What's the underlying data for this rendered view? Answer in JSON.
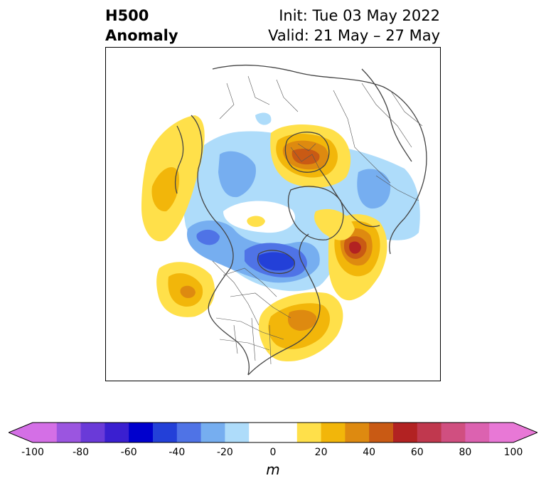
{
  "title": {
    "left_line1": "H500",
    "left_line2": "Anomaly",
    "right_line1": "Init: Tue 03 May 2022",
    "right_line2": "Valid: 21 May – 27 May"
  },
  "colorbar": {
    "label": "m",
    "ticks": [
      "-100",
      "-80",
      "-60",
      "-40",
      "-20",
      "0",
      "20",
      "40",
      "60",
      "80",
      "100"
    ],
    "colors": [
      "#d46fe6",
      "#9b55e0",
      "#6a3ad8",
      "#3a1fd0",
      "#0000cd",
      "#2340d8",
      "#4f73e6",
      "#76aef0",
      "#aedcfa",
      "#ffffff",
      "#ffffff",
      "#ffe04a",
      "#f2b60a",
      "#de8a10",
      "#c95a14",
      "#b22222",
      "#c0384e",
      "#d04f80",
      "#dc62b0",
      "#e878d6"
    ],
    "min_arrow_color": "#d46fe6",
    "max_arrow_color": "#e878d6"
  }
}
